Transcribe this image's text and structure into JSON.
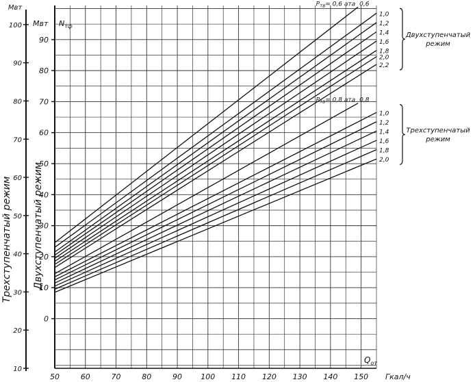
{
  "chart_data": {
    "type": "line",
    "x_label": "Q",
    "x_label_sub": "от",
    "x_unit": "Гкал/ч",
    "x_ticks": [
      50,
      60,
      70,
      80,
      90,
      100,
      110,
      120,
      130,
      140,
      150
    ],
    "x_range": [
      50,
      155
    ],
    "ylabel_unit_top": "Мвт",
    "ylabel_unit_inner": "Мвт",
    "ylabel_symbol": "N",
    "ylabel_symbol_sub": "тф",
    "ylabel_outer": "Трехступенчатый режим",
    "ylabel_inner": "Двухступенчатый режим",
    "y_outer_ticks": [
      10,
      20,
      30,
      40,
      50,
      60,
      70,
      80,
      90,
      100
    ],
    "y_outer_range": [
      10,
      105
    ],
    "y_inner_ticks": [
      0,
      10,
      20,
      30,
      40,
      50,
      60,
      70,
      80,
      90
    ],
    "y_inner_range": [
      -16,
      101
    ],
    "grid": true,
    "groups": [
      {
        "name": "Двухступенчатый режим",
        "param_label": "Р",
        "param_label_sub": "тв",
        "param_label_rest": "= 0,6 ата",
        "series": [
          {
            "name": "0,6",
            "points": [
              [
                50,
                24.5
              ],
              [
                149,
                100.5
              ]
            ]
          },
          {
            "name": "1,0",
            "points": [
              [
                50,
                23.0
              ],
              [
                155,
                98.5
              ]
            ]
          },
          {
            "name": "1,2",
            "points": [
              [
                50,
                21.5
              ],
              [
                155,
                95.5
              ]
            ]
          },
          {
            "name": "1,4",
            "points": [
              [
                50,
                20.5
              ],
              [
                155,
                92.5
              ]
            ]
          },
          {
            "name": "1,6",
            "points": [
              [
                50,
                19.5
              ],
              [
                155,
                89.5
              ]
            ]
          },
          {
            "name": "1,8",
            "points": [
              [
                50,
                18.5
              ],
              [
                155,
                86.5
              ]
            ]
          },
          {
            "name": "2,0",
            "points": [
              [
                50,
                17.5
              ],
              [
                155,
                84.5
              ]
            ]
          },
          {
            "name": "2,2",
            "points": [
              [
                50,
                16.5
              ],
              [
                155,
                82.0
              ]
            ]
          }
        ]
      },
      {
        "name": "Трехступенчатый режим",
        "param_label": "Р",
        "param_label_sub": "тв",
        "param_label_rest": "= 0,8 ата",
        "series": [
          {
            "name": "0,8",
            "points": [
              [
                50,
                14.5
              ],
              [
                149,
                69.5
              ]
            ]
          },
          {
            "name": "1,0",
            "points": [
              [
                50,
                13.5
              ],
              [
                155,
                66.5
              ]
            ]
          },
          {
            "name": "1,2",
            "points": [
              [
                50,
                12.5
              ],
              [
                155,
                63.5
              ]
            ]
          },
          {
            "name": "1,4",
            "points": [
              [
                50,
                11.5
              ],
              [
                155,
                60.5
              ]
            ]
          },
          {
            "name": "1,6",
            "points": [
              [
                50,
                10.5
              ],
              [
                155,
                57.5
              ]
            ]
          },
          {
            "name": "1,8",
            "points": [
              [
                50,
                9.5
              ],
              [
                155,
                54.5
              ]
            ]
          },
          {
            "name": "2,0",
            "points": [
              [
                50,
                8.5
              ],
              [
                155,
                51.5
              ]
            ]
          }
        ]
      }
    ]
  }
}
